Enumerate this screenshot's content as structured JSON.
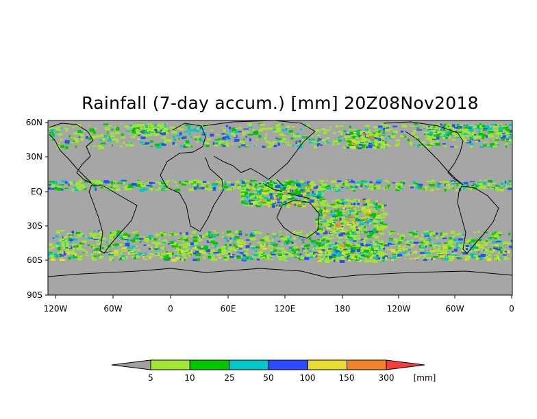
{
  "title": "Rainfall (7-day accum.) [mm] 20Z08Nov2018",
  "lat_ticks": [
    "60N",
    "30N",
    "EQ",
    "30S",
    "60S",
    "90S"
  ],
  "lon_ticks": [
    "120W",
    "60W",
    "0",
    "60E",
    "120E",
    "180",
    "120W",
    "60W",
    "0"
  ],
  "colorbar": {
    "labels": [
      "5",
      "10",
      "25",
      "50",
      "100",
      "150",
      "300"
    ],
    "unit": "[mm]",
    "colors": [
      "#a0a0a0",
      "#a0e632",
      "#00c800",
      "#00c8c8",
      "#2a4bff",
      "#e6dc32",
      "#f08228",
      "#fa3c3c"
    ]
  },
  "colors": {
    "land_and_dry": "#a6a6a6",
    "coastline": "#000000"
  }
}
